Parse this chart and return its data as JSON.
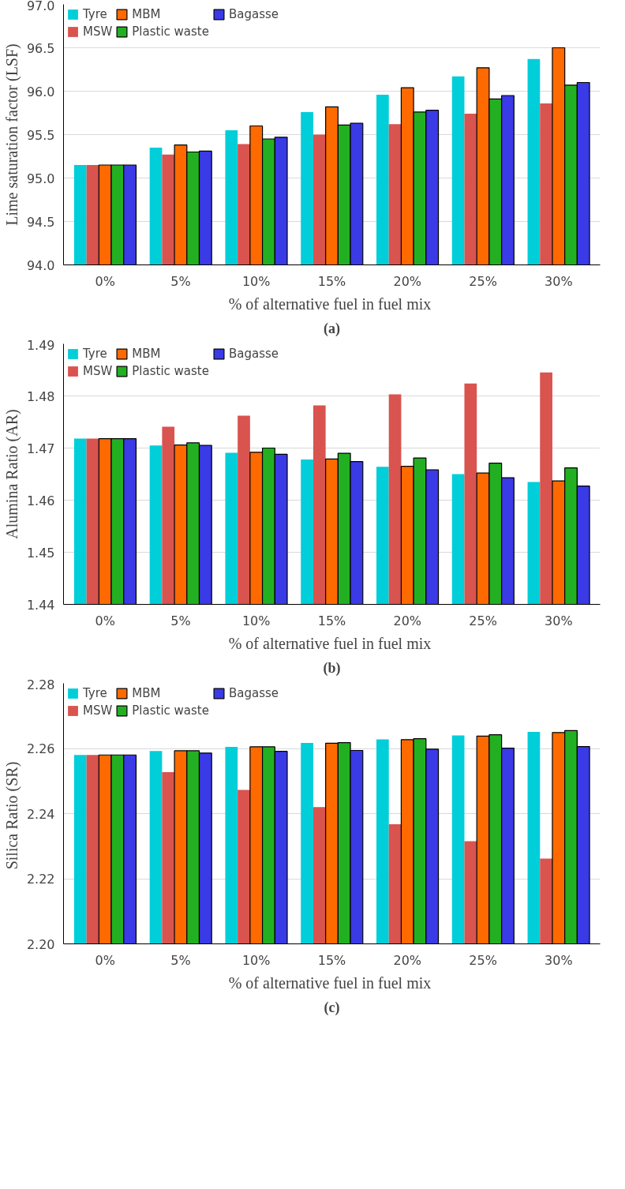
{
  "chart_data": [
    {
      "type": "bar",
      "categories": [
        "0%",
        "5%",
        "10%",
        "15%",
        "20%",
        "25%",
        "30%"
      ],
      "xlabel": "% of  alternative fuel in fuel mix",
      "ylabel": "Lime saturation factor (LSF)",
      "annotations": [
        "(a)"
      ],
      "ylim": [
        94.0,
        97.0
      ],
      "yticks": [
        {
          "value": 94.0,
          "label": "94.0"
        },
        {
          "value": 94.5,
          "label": "94.5"
        },
        {
          "value": 95.0,
          "label": "95.0"
        },
        {
          "value": 95.5,
          "label": "95.5"
        },
        {
          "value": 96.0,
          "label": "96.0"
        },
        {
          "value": 96.5,
          "label": "96.5"
        },
        {
          "value": 97.0,
          "label": "97.0"
        }
      ],
      "grid": "y",
      "legend": "top left",
      "series": [
        {
          "name": "Tyre",
          "color": "#00ced9",
          "values": [
            95.15,
            95.35,
            95.55,
            95.76,
            95.96,
            96.17,
            96.37
          ]
        },
        {
          "name": "MSW",
          "color": "#d9534f",
          "values": [
            95.15,
            95.27,
            95.39,
            95.5,
            95.62,
            95.74,
            95.86
          ]
        },
        {
          "name": "MBM",
          "color": "#ff6a00",
          "values": [
            95.15,
            95.38,
            95.6,
            95.82,
            96.04,
            96.27,
            96.5
          ]
        },
        {
          "name": "Plastic waste",
          "color": "#22b022",
          "values": [
            95.15,
            95.3,
            95.45,
            95.61,
            95.76,
            95.91,
            96.07
          ]
        },
        {
          "name": "Bagasse",
          "color": "#3a3ae6",
          "values": [
            95.15,
            95.31,
            95.47,
            95.63,
            95.78,
            95.95,
            96.1
          ]
        }
      ]
    },
    {
      "type": "bar",
      "categories": [
        "0%",
        "5%",
        "10%",
        "15%",
        "20%",
        "25%",
        "30%"
      ],
      "xlabel": "% of  alternative fuel in fuel mix",
      "ylabel": "Alumina Ratio (AR)",
      "annotations": [
        "(b)"
      ],
      "ylim": [
        1.44,
        1.49
      ],
      "yticks": [
        1.44,
        1.45,
        1.46,
        1.47,
        1.48,
        1.49
      ],
      "grid": "y",
      "legend": "top left",
      "series": [
        {
          "name": "Tyre",
          "color": "#00ced9",
          "values": [
            1.4718,
            1.4705,
            1.4691,
            1.4678,
            1.4664,
            1.465,
            1.4635
          ]
        },
        {
          "name": "MSW",
          "color": "#d9534f",
          "values": [
            1.4718,
            1.4741,
            1.4762,
            1.4782,
            1.4803,
            1.4824,
            1.4845
          ]
        },
        {
          "name": "MBM",
          "color": "#ff6a00",
          "values": [
            1.4718,
            1.4706,
            1.4692,
            1.4679,
            1.4665,
            1.4652,
            1.4637
          ]
        },
        {
          "name": "Plastic waste",
          "color": "#22b022",
          "values": [
            1.4718,
            1.471,
            1.47,
            1.469,
            1.4681,
            1.4671,
            1.4662
          ]
        },
        {
          "name": "Bagasse",
          "color": "#3a3ae6",
          "values": [
            1.4718,
            1.4705,
            1.4688,
            1.4674,
            1.4658,
            1.4643,
            1.4627
          ]
        }
      ]
    },
    {
      "type": "bar",
      "categories": [
        "0%",
        "5%",
        "10%",
        "15%",
        "20%",
        "25%",
        "30%"
      ],
      "xlabel": "% of  alternative fuel in fuel mix",
      "ylabel": "Silica  Ratio (SR)",
      "annotations": [
        "(c)"
      ],
      "ylim": [
        2.2,
        2.28
      ],
      "yticks": [
        {
          "value": 2.2,
          "label": "2.20"
        },
        2.22,
        2.24,
        2.26,
        2.28
      ],
      "grid": "y",
      "legend": "top left",
      "series": [
        {
          "name": "Tyre",
          "color": "#00ced9",
          "values": [
            2.258,
            2.2592,
            2.2605,
            2.2617,
            2.2628,
            2.264,
            2.2651
          ]
        },
        {
          "name": "MSW",
          "color": "#d9534f",
          "values": [
            2.258,
            2.2527,
            2.2473,
            2.242,
            2.2367,
            2.2315,
            2.2262
          ]
        },
        {
          "name": "MBM",
          "color": "#ff6a00",
          "values": [
            2.258,
            2.2593,
            2.2605,
            2.2616,
            2.2627,
            2.2638,
            2.2649
          ]
        },
        {
          "name": "Plastic waste",
          "color": "#22b022",
          "values": [
            2.258,
            2.2593,
            2.2605,
            2.2618,
            2.263,
            2.2642,
            2.2655
          ]
        },
        {
          "name": "Bagasse",
          "color": "#3a3ae6",
          "values": [
            2.258,
            2.2586,
            2.2591,
            2.2594,
            2.2598,
            2.2601,
            2.2606
          ]
        }
      ]
    }
  ]
}
